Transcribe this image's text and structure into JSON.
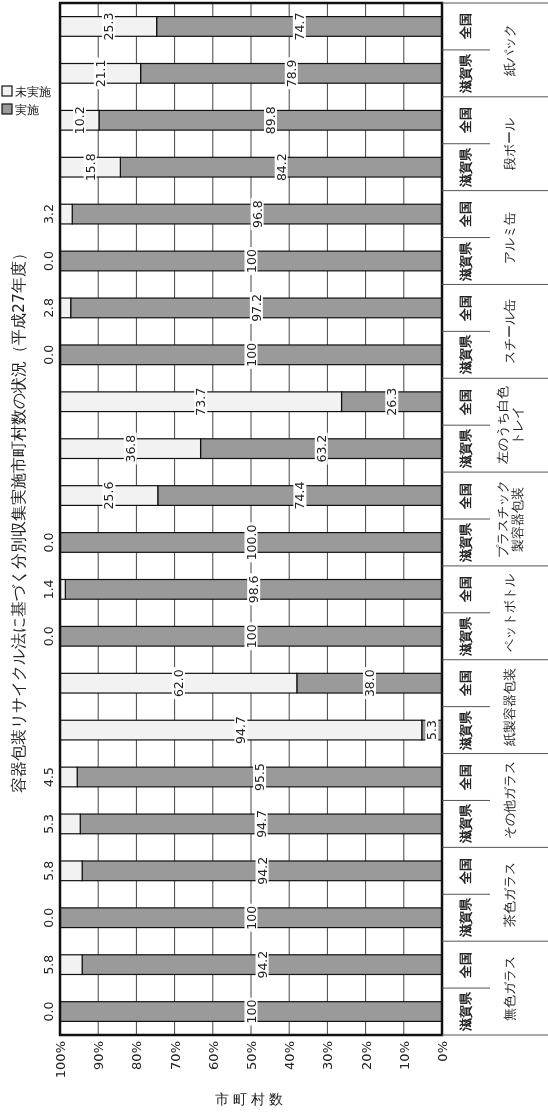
{
  "chart_data": {
    "type": "bar",
    "stacked": true,
    "orientation": "horizontal",
    "title": "容器包装リサイクル法に基づく分別収集実施市町村数の状況（平成27年度）",
    "xlabel": "市町村数",
    "categories": [
      "全国",
      "滋賀県",
      "全国",
      "滋賀県",
      "全国",
      "滋賀県",
      "全国",
      "滋賀県",
      "全国",
      "滋賀県",
      "全国",
      "滋賀県",
      "全国",
      "滋賀県",
      "全国",
      "滋賀県",
      "全国",
      "滋賀県",
      "全国",
      "滋賀県",
      "全国",
      "滋賀県"
    ],
    "annotations": [
      "紙パック",
      "段ボール",
      "アルミ缶",
      "スチール缶",
      "左のうち白色トレイ",
      "プラスチック製容器包装",
      "ペットボトル",
      "紙製容器包装",
      "その他ガラス",
      "茶色ガラス",
      "無色ガラス"
    ],
    "series": [
      {
        "name": "実施",
        "color": "#9a9a9a",
        "values": [
          74.7,
          78.9,
          89.8,
          84.2,
          96.8,
          100,
          97.2,
          100,
          26.3,
          63.2,
          74.4,
          100.0,
          98.6,
          100,
          38.0,
          5.3,
          95.5,
          94.7,
          94.2,
          100,
          94.2,
          100
        ],
        "value_labels": [
          "74.7",
          "78.9",
          "89.8",
          "84.2",
          "96.8",
          "100",
          "97.2",
          "100",
          "26.3",
          "63.2",
          "74.4",
          "100.0",
          "98.6",
          "100",
          "38.0",
          "5.3",
          "95.5",
          "94.7",
          "94.2",
          "100",
          "94.2",
          "100"
        ]
      },
      {
        "name": "未実施",
        "color": "#f2f2f2",
        "values": [
          25.3,
          21.1,
          10.2,
          15.8,
          3.2,
          0.0,
          2.8,
          0.0,
          73.7,
          36.8,
          25.6,
          0.0,
          1.4,
          0.0,
          62.0,
          94.7,
          4.5,
          5.3,
          5.8,
          0.0,
          5.8,
          0.0
        ],
        "value_labels": [
          "25.3",
          "21.1",
          "10.2",
          "15.8",
          "3.2",
          "0.0",
          "2.8",
          "0.0",
          "73.7",
          "36.8",
          "25.6",
          "0.0",
          "1.4",
          "0.0",
          "62.0",
          "94.7",
          "4.5",
          "5.3",
          "5.8",
          "0.0",
          "5.8",
          "0.0"
        ]
      }
    ],
    "xlim": [
      100,
      0
    ],
    "xticks": [
      {
        "value": 100,
        "label": "100%"
      },
      {
        "value": 90,
        "label": "90%"
      },
      {
        "value": 80,
        "label": "80%"
      },
      {
        "value": 70,
        "label": "70%"
      },
      {
        "value": 60,
        "label": "60%"
      },
      {
        "value": 50,
        "label": "50%"
      },
      {
        "value": 40,
        "label": "40%"
      },
      {
        "value": 30,
        "label": "30%"
      },
      {
        "value": 20,
        "label": "20%"
      },
      {
        "value": 10,
        "label": "10%"
      },
      {
        "value": 0,
        "label": "0%"
      }
    ],
    "grid": "x",
    "legend": "top left"
  }
}
